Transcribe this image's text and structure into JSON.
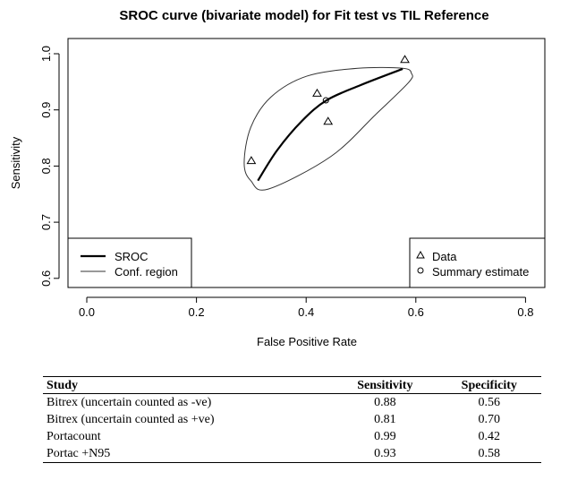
{
  "chart_data": {
    "type": "line",
    "title": "SROC curve (bivariate model) for Fit test vs TIL Reference",
    "xlabel": "False Positive Rate",
    "ylabel": "Sensitivity",
    "xlim": [
      -0.03,
      0.84
    ],
    "ylim": [
      0.575,
      1.027
    ],
    "xticks": [
      "0.0",
      "0.2",
      "0.4",
      "0.6",
      "0.8"
    ],
    "xtick_values": [
      0,
      0.2,
      0.4,
      0.6,
      0.8
    ],
    "yticks": [
      "0.6",
      "0.7",
      "0.8",
      "0.9",
      "1.0"
    ],
    "ytick_values": [
      0.6,
      0.7,
      0.8,
      0.9,
      1.0
    ],
    "sroc": [
      [
        0.312,
        0.774
      ],
      [
        0.347,
        0.828
      ],
      [
        0.392,
        0.88
      ],
      [
        0.437,
        0.917
      ],
      [
        0.499,
        0.944
      ],
      [
        0.576,
        0.973
      ]
    ],
    "conf_region": [
      [
        0.287,
        0.805
      ],
      [
        0.299,
        0.774
      ],
      [
        0.331,
        0.759
      ],
      [
        0.445,
        0.817
      ],
      [
        0.527,
        0.892
      ],
      [
        0.587,
        0.949
      ],
      [
        0.592,
        0.965
      ],
      [
        0.576,
        0.974
      ],
      [
        0.494,
        0.974
      ],
      [
        0.401,
        0.96
      ],
      [
        0.336,
        0.923
      ],
      [
        0.299,
        0.869
      ]
    ],
    "data_points": [
      [
        0.44,
        0.88
      ],
      [
        0.3,
        0.81
      ],
      [
        0.58,
        0.99
      ],
      [
        0.42,
        0.93
      ]
    ],
    "summary_estimate": [
      0.436,
      0.917
    ],
    "legend_left": [
      "SROC",
      "Conf. region"
    ],
    "legend_right": [
      "Data",
      "Summary estimate"
    ],
    "legend_placement": [
      "bottom-left",
      "bottom-right"
    ]
  },
  "table": {
    "headers": [
      "Study",
      "Sensitivity",
      "Specificity"
    ],
    "rows": [
      [
        "Bitrex (uncertain counted as -ve)",
        "0.88",
        "0.56"
      ],
      [
        "Bitrex (uncertain counted as +ve)",
        "0.81",
        "0.70"
      ],
      [
        "Portacount",
        "0.99",
        "0.42"
      ],
      [
        "Portac +N95",
        "0.93",
        "0.58"
      ]
    ]
  }
}
